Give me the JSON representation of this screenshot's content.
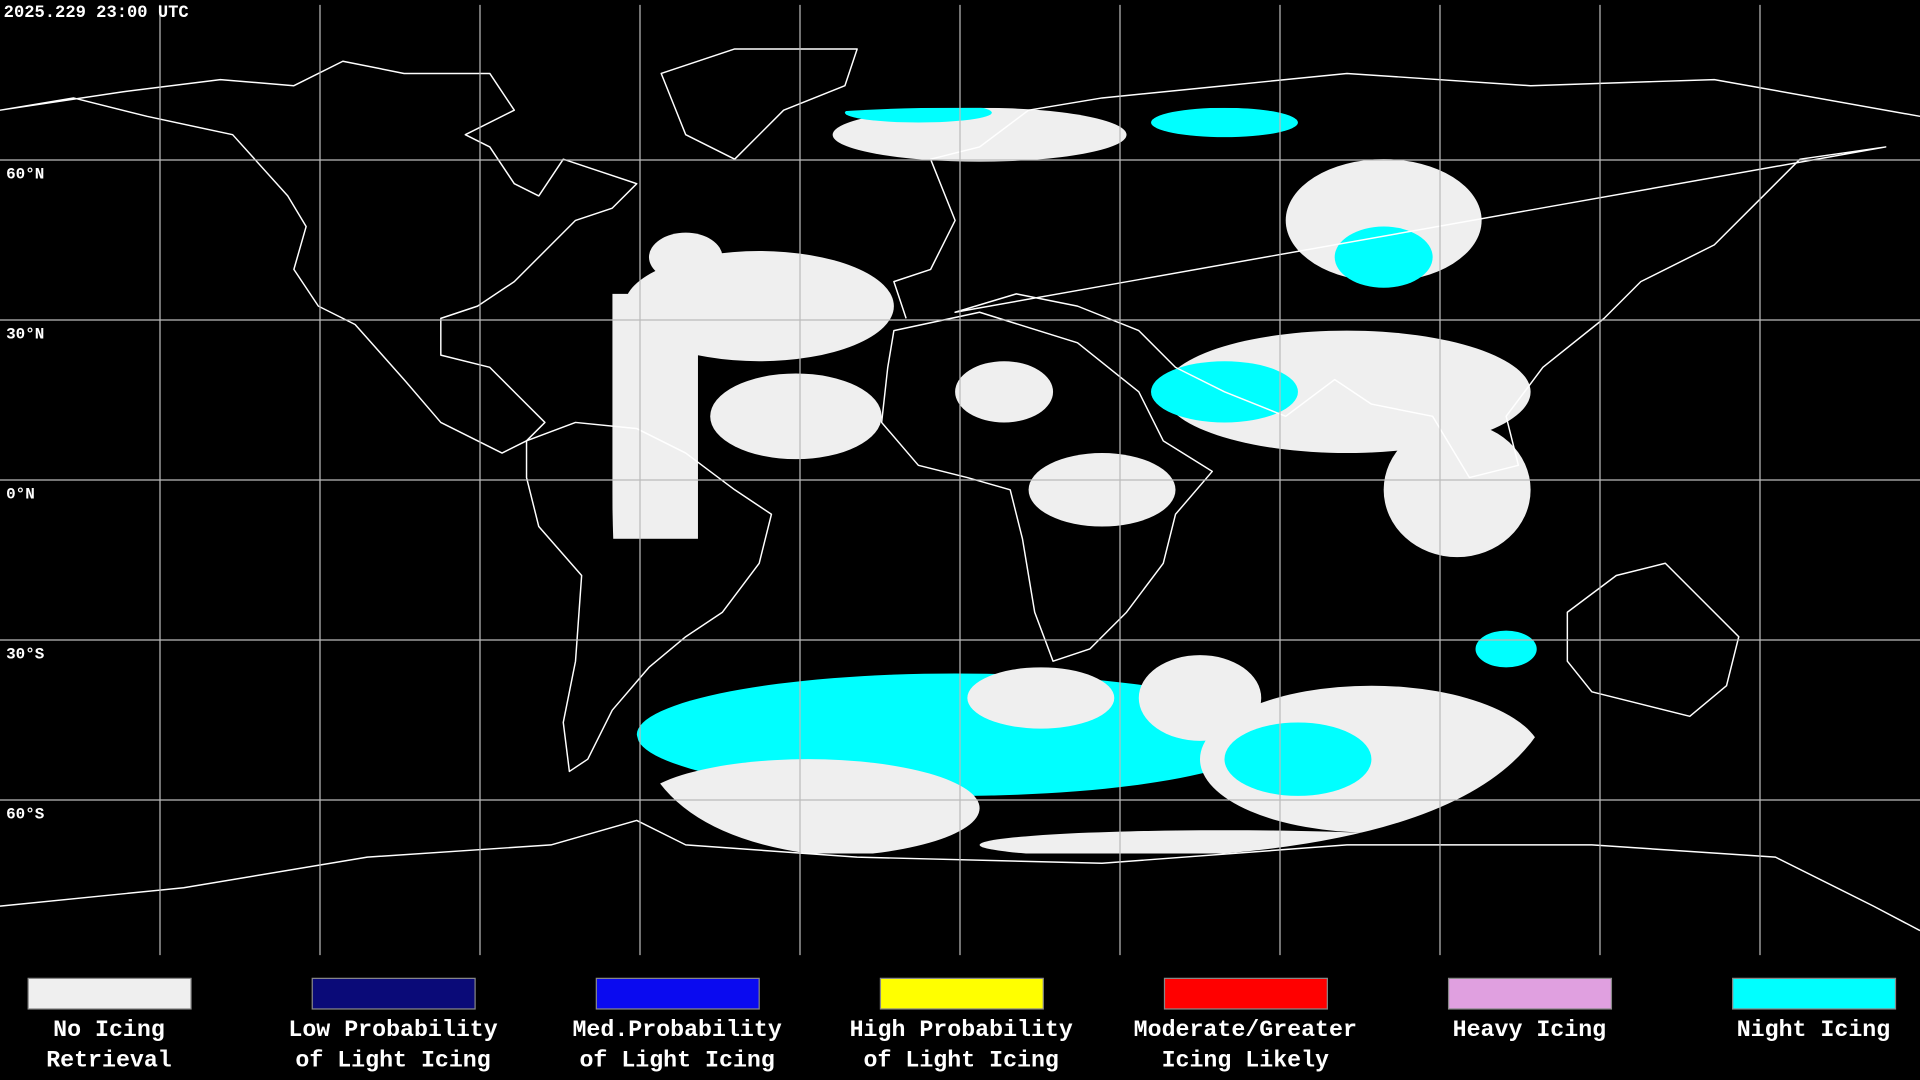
{
  "header": {
    "timestamp": "2025.229 23:00 UTC"
  },
  "map": {
    "latitude_labels": [
      "60°N",
      "30°N",
      "0°N",
      "30°S",
      "60°S"
    ]
  },
  "legend": [
    {
      "label_lines": [
        "No Icing",
        "Retrieval"
      ],
      "color": "#efefef"
    },
    {
      "label_lines": [
        "Low Probability",
        "of Light Icing"
      ],
      "color": "#0a0a78"
    },
    {
      "label_lines": [
        "Med.Probability",
        "of Light Icing"
      ],
      "color": "#0a0af0"
    },
    {
      "label_lines": [
        "High Probability",
        "of Light Icing"
      ],
      "color": "#ffff00"
    },
    {
      "label_lines": [
        "Moderate/Greater",
        "Icing Likely"
      ],
      "color": "#ff0000"
    },
    {
      "label_lines": [
        "Heavy Icing"
      ],
      "color": "#e0a0e0"
    },
    {
      "label_lines": [
        "Night Icing"
      ],
      "color": "#00ffff"
    }
  ]
}
